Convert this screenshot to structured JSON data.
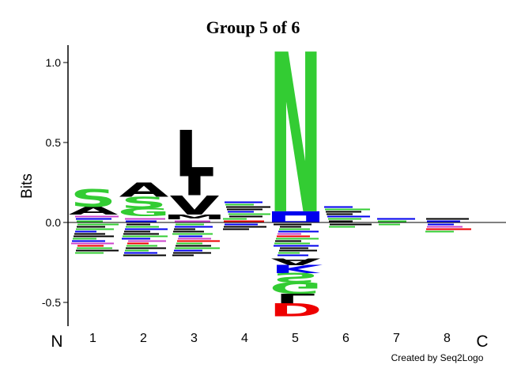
{
  "chart_data": {
    "type": "logo",
    "title": "Group 5 of 6",
    "ylabel": "Bits",
    "ylim": [
      -0.65,
      1.1
    ],
    "y_ticks": [
      {
        "value": 1.0,
        "label": "1.0"
      },
      {
        "value": 0.5,
        "label": "0.5"
      },
      {
        "value": 0.0,
        "label": "0.0"
      },
      {
        "value": -0.5,
        "label": "-0.5"
      }
    ],
    "positions": [
      "1",
      "2",
      "3",
      "4",
      "5",
      "6",
      "7",
      "8"
    ],
    "n_terminal_label": "N",
    "c_terminal_label": "C",
    "colors": {
      "S": "#33cc33",
      "G": "#33cc33",
      "N": "#33cc33",
      "T": "#33cc33",
      "Q": "#33cc33",
      "C": "#33cc33",
      "Y": "#33cc33",
      "A": "#000000",
      "L": "#000000",
      "I": "#000000",
      "V": "#000000",
      "M": "#000000",
      "P": "#000000",
      "F": "#000000",
      "W": "#000000",
      "K": "#0000ee",
      "R": "#0000ee",
      "H": "#0000ee",
      "D": "#ee0000",
      "E": "#ee0000",
      "mix": "#cc44cc"
    },
    "columns": [
      {
        "position": "1",
        "positive": [
          {
            "letter": "A",
            "bits": 0.05
          },
          {
            "letter": "S",
            "bits": 0.11
          }
        ],
        "positive_residual": 0.05,
        "negative": [],
        "negative_residual": 0.2
      },
      {
        "position": "2",
        "positive": [
          {
            "letter": "G",
            "bits": 0.05
          },
          {
            "letter": "S",
            "bits": 0.07
          },
          {
            "letter": "A",
            "bits": 0.09
          }
        ],
        "positive_residual": 0.04,
        "negative": [],
        "negative_residual": 0.22
      },
      {
        "position": "3",
        "positive": [
          {
            "letter": "M",
            "bits": 0.03
          },
          {
            "letter": "V",
            "bits": 0.12
          },
          {
            "letter": "I",
            "bits": 0.12
          },
          {
            "letter": "L",
            "bits": 0.29
          }
        ],
        "positive_residual": 0.02,
        "negative": [],
        "negative_residual": 0.22
      },
      {
        "position": "4",
        "positive": [],
        "positive_residual": 0.14,
        "negative": [],
        "negative_residual": 0.05
      },
      {
        "position": "5",
        "positive": [
          {
            "letter": "H",
            "bits": 0.07
          },
          {
            "letter": "N",
            "bits": 1.0
          }
        ],
        "positive_residual": 0.0,
        "negative": [
          {
            "letter": "A",
            "bits": 0.04
          },
          {
            "letter": "K",
            "bits": 0.05
          },
          {
            "letter": "S",
            "bits": 0.06
          },
          {
            "letter": "G",
            "bits": 0.07
          },
          {
            "letter": "L",
            "bits": 0.06
          },
          {
            "letter": "D",
            "bits": 0.08
          }
        ],
        "negative_residual": 0.22
      },
      {
        "position": "6",
        "positive": [],
        "positive_residual": 0.11,
        "negative": [],
        "negative_residual": 0.04
      },
      {
        "position": "7",
        "positive": [],
        "positive_residual": 0.04,
        "negative": [],
        "negative_residual": 0.02
      },
      {
        "position": "8",
        "positive": [],
        "positive_residual": 0.04,
        "negative": [],
        "negative_residual": 0.06
      }
    ]
  },
  "footer": {
    "credit": "Created by Seq2Logo"
  }
}
